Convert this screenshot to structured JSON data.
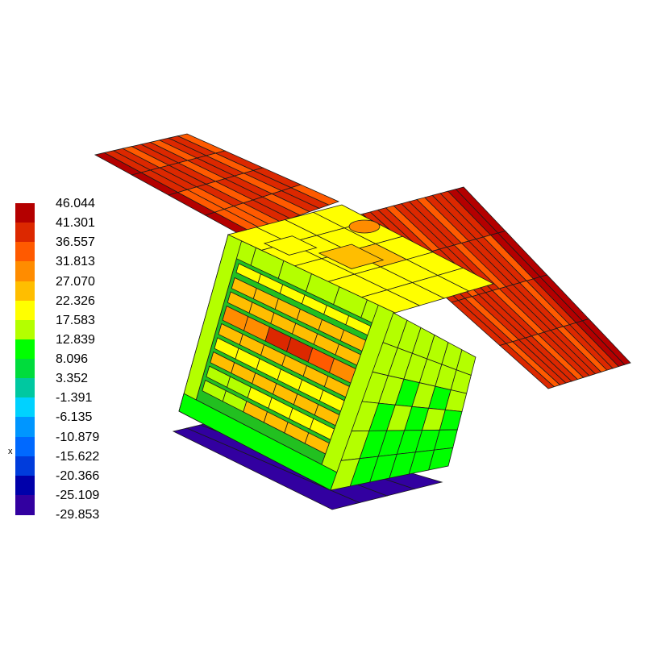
{
  "legend": {
    "labels": [
      "46.044",
      "41.301",
      "36.557",
      "31.813",
      "27.070",
      "22.326",
      "17.583",
      "12.839",
      "8.096",
      "3.352",
      "-1.391",
      "-6.135",
      "-10.879",
      "-15.622",
      "-20.366",
      "-25.109",
      "-29.853"
    ],
    "colors": [
      "#b40000",
      "#dc2800",
      "#ff5a00",
      "#ff8c00",
      "#ffbe00",
      "#ffff00",
      "#b4ff00",
      "#00ff00",
      "#00dc3c",
      "#00c8a0",
      "#00d2ff",
      "#0096ff",
      "#0069ff",
      "#003cdc",
      "#0000aa",
      "#3200a0"
    ]
  },
  "axis_label": "x"
}
